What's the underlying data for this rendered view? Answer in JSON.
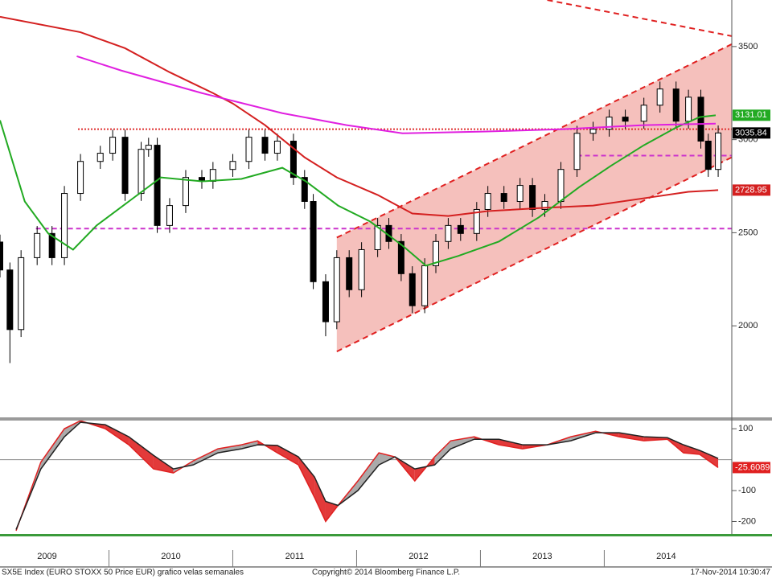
{
  "footer": {
    "title": "SX5E Index (EURO STOXX 50 Price EUR) grafico velas semanales",
    "copyright": "Copyright© 2014 Bloomberg Finance L.P.",
    "timestamp": "17-Nov-2014 10:30:47"
  },
  "chart_data": [
    {
      "type": "candlestick",
      "xlim": [
        2009.12,
        2015.03
      ],
      "ylim": [
        1504,
        3750
      ],
      "yticks": [
        2000,
        2500,
        3000,
        3500
      ],
      "candle_up_color": "#ffffff",
      "candle_down_color": "#000000",
      "x": [
        2009.12,
        2009.2,
        2009.29,
        2009.42,
        2009.54,
        2009.64,
        2009.77,
        2009.93,
        2010.03,
        2010.13,
        2010.26,
        2010.32,
        2010.39,
        2010.49,
        2010.62,
        2010.75,
        2010.84,
        2011.0,
        2011.13,
        2011.26,
        2011.36,
        2011.49,
        2011.58,
        2011.65,
        2011.75,
        2011.84,
        2011.94,
        2012.04,
        2012.17,
        2012.26,
        2012.36,
        2012.45,
        2012.55,
        2012.64,
        2012.74,
        2012.84,
        2012.97,
        2013.06,
        2013.19,
        2013.32,
        2013.42,
        2013.52,
        2013.65,
        2013.78,
        2013.91,
        2014.04,
        2014.17,
        2014.32,
        2014.45,
        2014.58,
        2014.68,
        2014.78,
        2014.84,
        2014.92
      ],
      "open": [
        2450,
        2300,
        1980,
        2366,
        2496,
        2366,
        2711,
        2883,
        2927,
        3013,
        2711,
        2948,
        2970,
        2539,
        2646,
        2797,
        2776,
        2840,
        2883,
        3013,
        2927,
        2992,
        2797,
        2668,
        2237,
        2022,
        2366,
        2194,
        2409,
        2539,
        2453,
        2280,
        2108,
        2323,
        2453,
        2539,
        2496,
        2625,
        2711,
        2668,
        2754,
        2625,
        2668,
        2840,
        3034,
        3056,
        3121,
        3099,
        3185,
        3272,
        3099,
        3228,
        2992,
        2840
      ],
      "high": [
        2490,
        2340,
        2406,
        2536,
        2536,
        2751,
        2923,
        2967,
        3053,
        3053,
        2988,
        3010,
        3010,
        2686,
        2837,
        2837,
        2880,
        2923,
        3053,
        3053,
        3032,
        3032,
        2837,
        2708,
        2277,
        2406,
        2406,
        2449,
        2579,
        2579,
        2493,
        2320,
        2363,
        2493,
        2579,
        2579,
        2665,
        2751,
        2751,
        2794,
        2794,
        2708,
        2880,
        3074,
        3096,
        3161,
        3161,
        3225,
        3312,
        3312,
        3268,
        3268,
        3032,
        3076
      ],
      "low": [
        2260,
        1800,
        1940,
        2326,
        2326,
        2326,
        2671,
        2843,
        2887,
        2671,
        2671,
        2908,
        2499,
        2499,
        2606,
        2736,
        2736,
        2800,
        2843,
        2887,
        2887,
        2757,
        2628,
        2197,
        1944,
        1982,
        2154,
        2154,
        2369,
        2413,
        2240,
        2068,
        2068,
        2283,
        2413,
        2456,
        2456,
        2585,
        2628,
        2628,
        2585,
        2585,
        2628,
        2800,
        2994,
        3016,
        3059,
        3059,
        3145,
        3059,
        3059,
        2952,
        2800,
        2800
      ],
      "close": [
        2300,
        1980,
        2366,
        2496,
        2366,
        2711,
        2883,
        2927,
        3013,
        2711,
        2948,
        2970,
        2539,
        2646,
        2797,
        2776,
        2840,
        2883,
        3013,
        2927,
        2992,
        2797,
        2668,
        2237,
        2022,
        2366,
        2194,
        2409,
        2539,
        2453,
        2280,
        2108,
        2323,
        2453,
        2539,
        2496,
        2625,
        2711,
        2668,
        2754,
        2625,
        2668,
        2840,
        3034,
        3056,
        3121,
        3099,
        3185,
        3272,
        3099,
        3228,
        2992,
        2840,
        3035.84
      ],
      "last_label_color": "#000000",
      "series": [
        {
          "color": "#d42020",
          "label_box": true,
          "x": [
            2009.12,
            2009.77,
            2010.13,
            2010.49,
            2010.84,
            2011.0,
            2011.26,
            2011.58,
            2011.84,
            2012.17,
            2012.45,
            2012.74,
            2013.06,
            2013.52,
            2013.91,
            2014.32,
            2014.68,
            2014.92
          ],
          "values": [
            3660,
            3577,
            3491,
            3362,
            3250,
            3194,
            3078,
            2905,
            2797,
            2703,
            2603,
            2590,
            2616,
            2634,
            2646,
            2685,
            2720,
            2728.95
          ]
        },
        {
          "color": "#22aa22",
          "label_box": true,
          "x": [
            2009.12,
            2009.32,
            2009.51,
            2009.71,
            2009.9,
            2010.16,
            2010.42,
            2010.75,
            2011.07,
            2011.4,
            2011.59,
            2011.85,
            2012.11,
            2012.37,
            2012.56,
            2012.82,
            2013.15,
            2013.47,
            2013.8,
            2014.06,
            2014.32,
            2014.58,
            2014.77,
            2014.9
          ],
          "values": [
            3104,
            2668,
            2496,
            2409,
            2539,
            2668,
            2797,
            2776,
            2789,
            2849,
            2776,
            2646,
            2560,
            2431,
            2323,
            2375,
            2453,
            2582,
            2746,
            2862,
            2970,
            3065,
            3121,
            3131.01
          ]
        },
        {
          "color": "#e020e0",
          "label_box": false,
          "x": [
            2009.74,
            2010.1,
            2010.75,
            2011.4,
            2011.92,
            2012.37,
            2013.02,
            2013.67,
            2014.32,
            2014.9
          ],
          "values": [
            3448,
            3371,
            3250,
            3142,
            3078,
            3034,
            3043,
            3056,
            3078,
            3086
          ]
        }
      ],
      "hlines": [
        {
          "value": 3056,
          "from": 2009.75,
          "color": "#e03030",
          "style": "dotted"
        },
        {
          "value": 2522,
          "from": 2009.41,
          "color": "#cc33cc",
          "style": "dashed"
        },
        {
          "value": 2914,
          "from": 2013.78,
          "color": "#cc33cc",
          "style": "dashed"
        }
      ],
      "channel": {
        "x": [
          2011.84,
          2015.03
        ],
        "lower": [
          1862,
          2905
        ],
        "upper": [
          2474,
          3513
        ],
        "fill": "#f3b5b0",
        "color": "#e02020"
      },
      "trendlines": [
        {
          "x": [
            2013.54,
            2015.03
          ],
          "values": [
            3750,
            3556
          ],
          "color": "#e02020"
        }
      ]
    },
    {
      "type": "macd",
      "xlim": [
        2009.12,
        2015.03
      ],
      "ylim": [
        -243,
        129
      ],
      "yticks": [
        100,
        -100,
        -200
      ],
      "zero_line": true,
      "xticks": [
        {
          "value": 2009.5,
          "label": "2009"
        },
        {
          "value": 2010.5,
          "label": "2010"
        },
        {
          "value": 2011.5,
          "label": "2011"
        },
        {
          "value": 2012.5,
          "label": "2012"
        },
        {
          "value": 2013.5,
          "label": "2013"
        },
        {
          "value": 2014.5,
          "label": "2014"
        }
      ],
      "x": [
        2009.25,
        2009.45,
        2009.64,
        2009.77,
        2009.97,
        2010.16,
        2010.36,
        2010.52,
        2010.68,
        2010.88,
        2011.07,
        2011.2,
        2011.36,
        2011.53,
        2011.66,
        2011.75,
        2011.85,
        2012.01,
        2012.18,
        2012.31,
        2012.47,
        2012.63,
        2012.76,
        2012.95,
        2013.15,
        2013.34,
        2013.54,
        2013.73,
        2013.93,
        2014.12,
        2014.32,
        2014.51,
        2014.64,
        2014.77,
        2014.92
      ],
      "series": [
        {
          "color": "#e02020",
          "label_box": true,
          "values": [
            -230,
            -8,
            100,
            126,
            100,
            48,
            -30,
            -43,
            -4,
            35,
            48,
            61,
            22,
            -17,
            -122,
            -200,
            -148,
            -69,
            22,
            9,
            -69,
            9,
            61,
            74,
            48,
            35,
            48,
            74,
            92,
            74,
            61,
            66,
            22,
            17,
            -25.6089
          ]
        },
        {
          "color": "#222222",
          "label_box": false,
          "values": [
            -226,
            -30,
            74,
            121,
            113,
            74,
            14,
            -30,
            -17,
            22,
            35,
            48,
            46,
            9,
            -56,
            -135,
            -148,
            -100,
            -17,
            9,
            -30,
            -17,
            35,
            66,
            66,
            48,
            48,
            61,
            87,
            87,
            74,
            71,
            48,
            30,
            4
          ]
        }
      ],
      "fill_below": "#e23a3a",
      "fill_above": "#aaaaaa"
    }
  ]
}
